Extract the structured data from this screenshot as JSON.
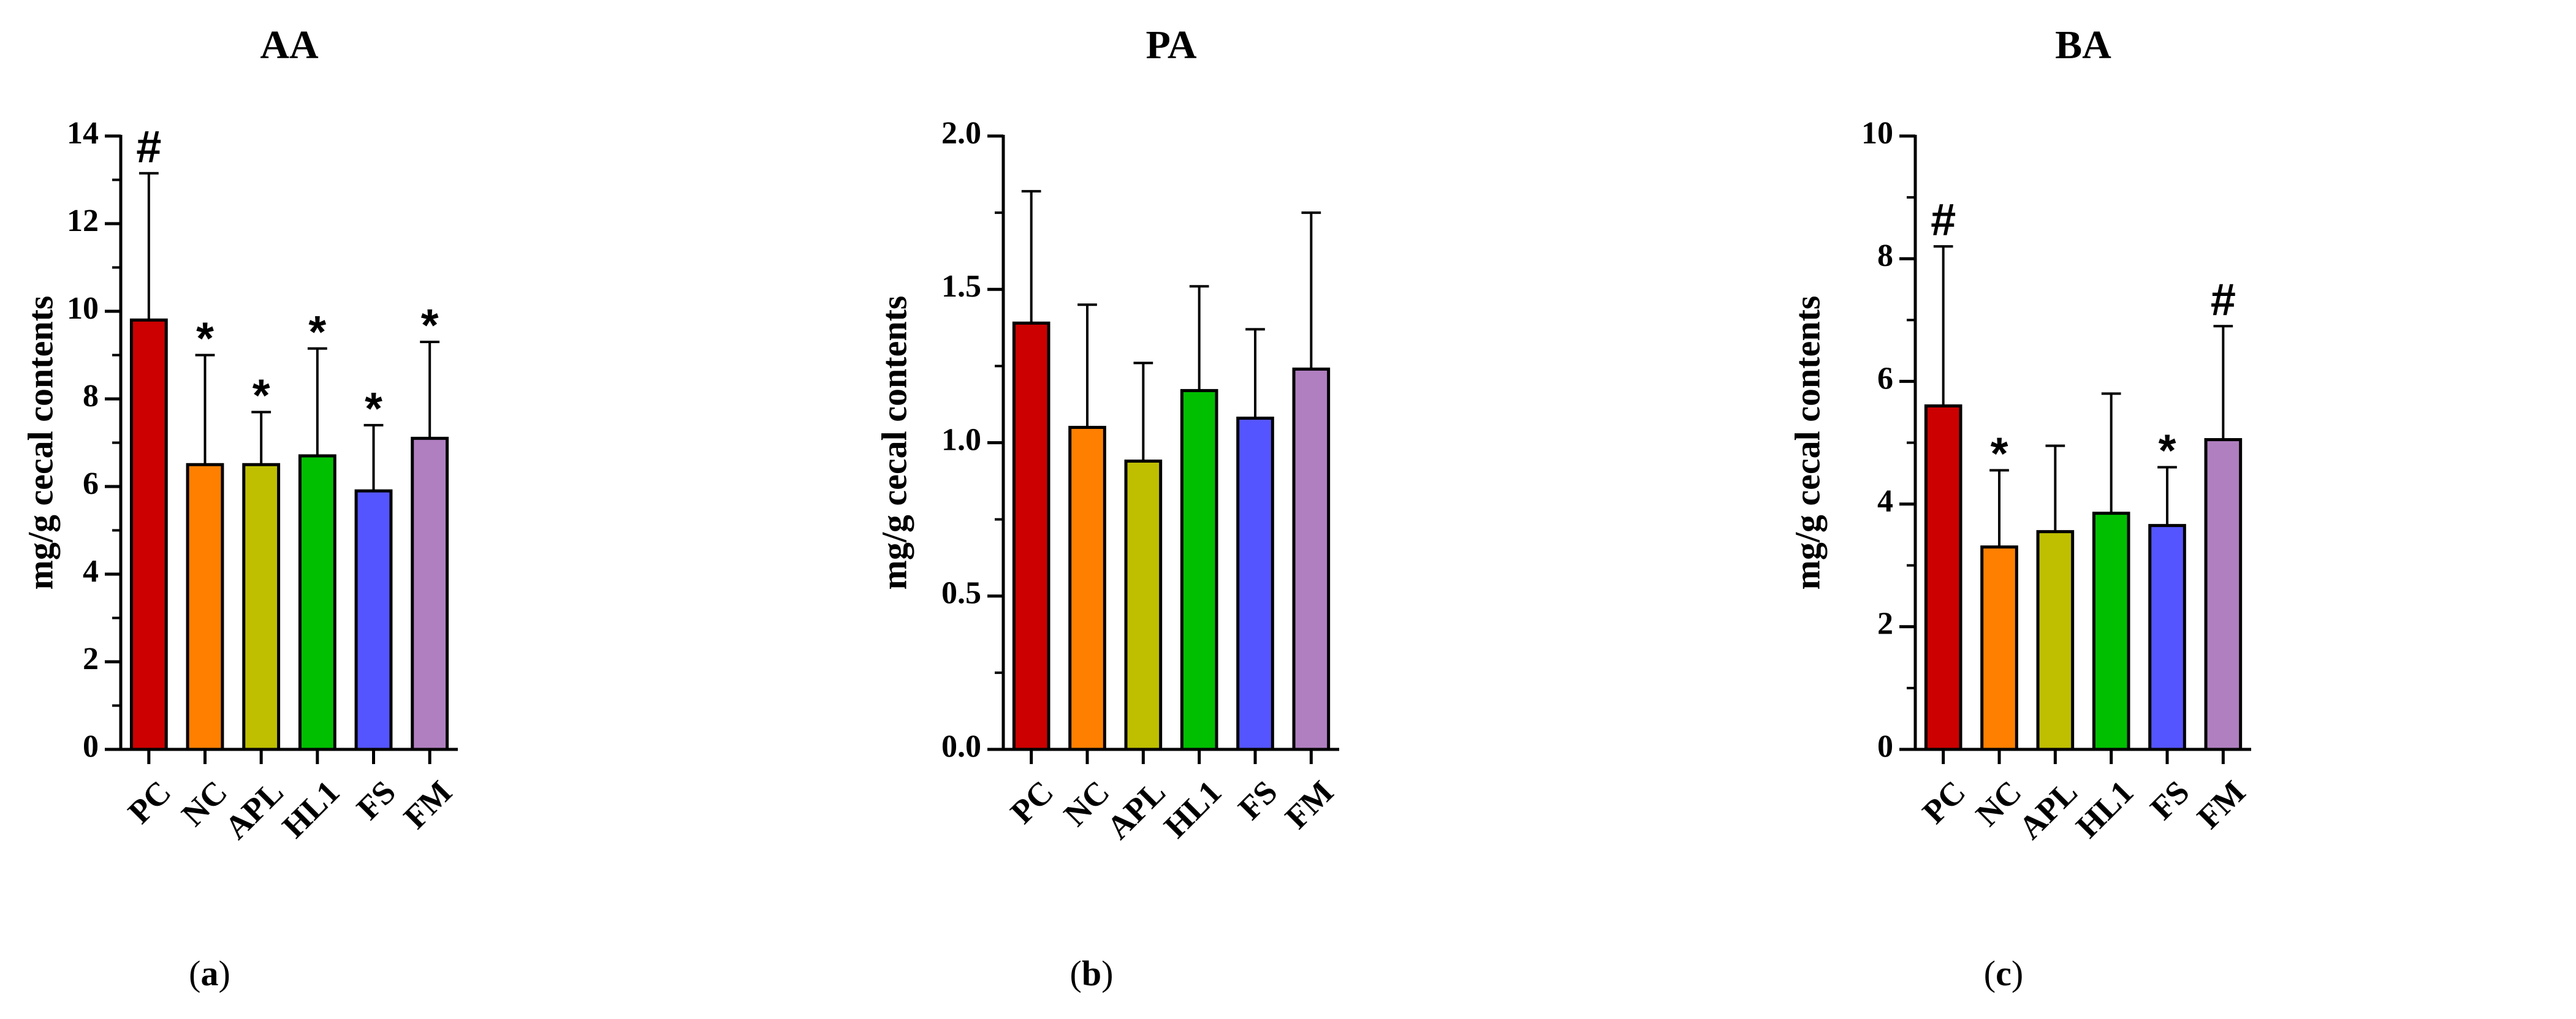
{
  "chart_data": [
    {
      "panel_label": "a",
      "type": "bar",
      "title": "AA",
      "ylabel": "mg/g cecal contents",
      "xlabel": "",
      "ylim": [
        0,
        14
      ],
      "yticks": [
        "0",
        "2",
        "4",
        "6",
        "8",
        "10",
        "12",
        "14"
      ],
      "categories": [
        "PC",
        "NC",
        "APL",
        "HL1",
        "FS",
        "FM"
      ],
      "values": [
        9.8,
        6.5,
        6.5,
        6.7,
        5.9,
        7.1
      ],
      "errors": [
        3.35,
        2.5,
        1.2,
        2.45,
        1.5,
        2.2
      ],
      "annotations": [
        "#",
        "*",
        "*",
        "*",
        "*",
        "*"
      ]
    },
    {
      "panel_label": "b",
      "type": "bar",
      "title": "PA",
      "ylabel": "mg/g cecal contents",
      "xlabel": "",
      "ylim": [
        0,
        2
      ],
      "yticks": [
        "0.0",
        "0.5",
        "1.0",
        "1.5",
        "2.0"
      ],
      "categories": [
        "PC",
        "NC",
        "APL",
        "HL1",
        "FS",
        "FM"
      ],
      "values": [
        1.39,
        1.05,
        0.94,
        1.17,
        1.08,
        1.24
      ],
      "errors": [
        0.43,
        0.4,
        0.32,
        0.34,
        0.29,
        0.51
      ],
      "annotations": [
        "",
        "",
        "",
        "",
        "",
        ""
      ]
    },
    {
      "panel_label": "c",
      "type": "bar",
      "title": "BA",
      "ylabel": "mg/g cecal contents",
      "xlabel": "",
      "ylim": [
        0,
        10
      ],
      "yticks": [
        "0",
        "2",
        "4",
        "6",
        "8",
        "10"
      ],
      "categories": [
        "PC",
        "NC",
        "APL",
        "HL1",
        "FS",
        "FM"
      ],
      "values": [
        5.6,
        3.3,
        3.55,
        3.85,
        3.65,
        5.05
      ],
      "errors": [
        2.6,
        1.25,
        1.4,
        1.95,
        0.95,
        1.85
      ],
      "annotations": [
        "#",
        "*",
        "",
        "",
        "*",
        "#"
      ]
    }
  ],
  "colors": [
    "#cc0000",
    "#ff8000",
    "#bfbf00",
    "#00bf00",
    "#5555ff",
    "#b07fc0"
  ]
}
